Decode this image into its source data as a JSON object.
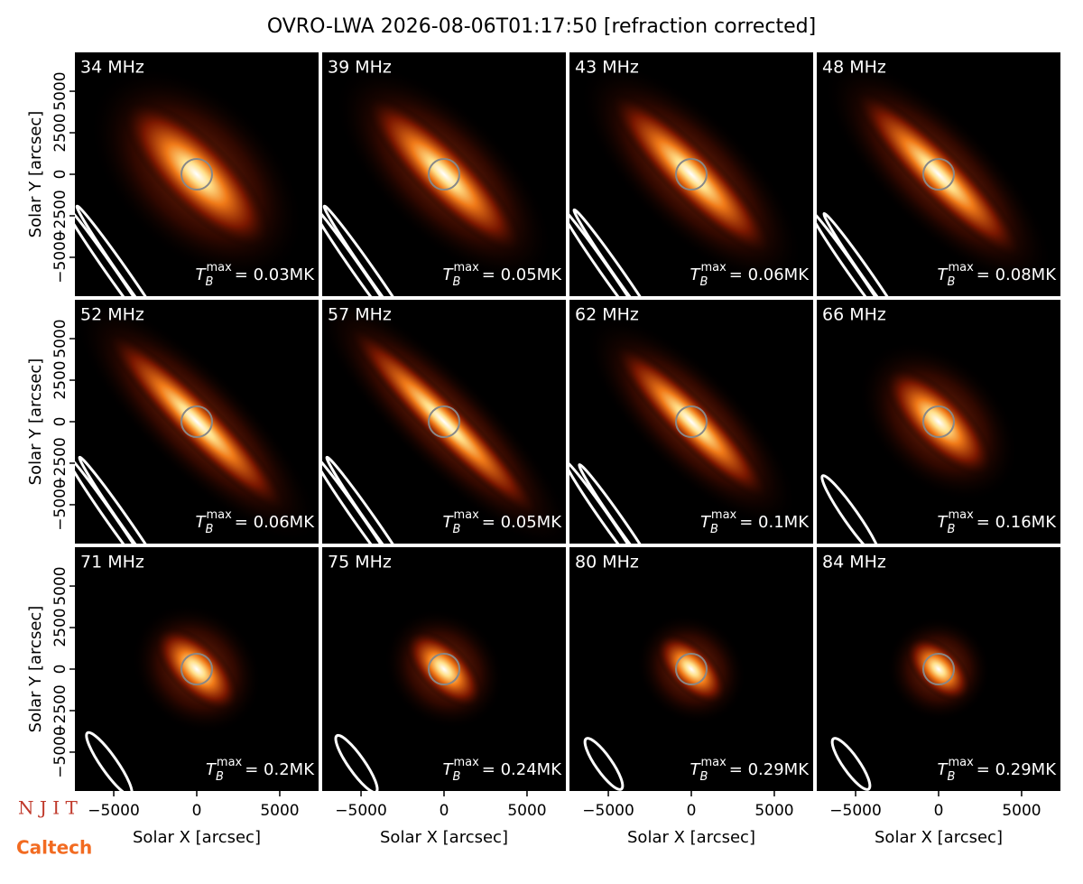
{
  "title": "OVRO-LWA 2026-08-06T01:17:50 [refraction corrected]",
  "logos": [
    "N J I T",
    "Caltech"
  ],
  "annotation_symbol": {
    "base": "T",
    "sub": "B",
    "sup": "max"
  },
  "chart_data": [
    {
      "type": "image",
      "title": "34 MHz",
      "annotation": "= 0.03MK",
      "xlim": [
        -7340,
        7340
      ],
      "ylim": [
        -7340,
        7340
      ],
      "ylabel": "Solar Y [arcsec]",
      "yticks": [
        {
          "value": -5000,
          "label": "−5000"
        },
        {
          "value": -2500,
          "label": "−2500"
        },
        0,
        2500,
        5000
      ]
    },
    {
      "type": "image",
      "title": "39 MHz",
      "annotation": "= 0.05MK",
      "xlim": [
        -7340,
        7340
      ],
      "ylim": [
        -7340,
        7340
      ]
    },
    {
      "type": "image",
      "title": "43 MHz",
      "annotation": "= 0.06MK",
      "xlim": [
        -7340,
        7340
      ],
      "ylim": [
        -7340,
        7340
      ]
    },
    {
      "type": "image",
      "title": "48 MHz",
      "annotation": "= 0.08MK",
      "xlim": [
        -7340,
        7340
      ],
      "ylim": [
        -7340,
        7340
      ]
    },
    {
      "type": "image",
      "title": "52 MHz",
      "annotation": "= 0.06MK",
      "xlim": [
        -7340,
        7340
      ],
      "ylim": [
        -7340,
        7340
      ],
      "ylabel": "Solar Y [arcsec]",
      "yticks": [
        {
          "value": -5000,
          "label": "−5000"
        },
        {
          "value": -2500,
          "label": "−2500"
        },
        0,
        2500,
        5000
      ]
    },
    {
      "type": "image",
      "title": "57 MHz",
      "annotation": "= 0.05MK",
      "xlim": [
        -7340,
        7340
      ],
      "ylim": [
        -7340,
        7340
      ]
    },
    {
      "type": "image",
      "title": "62 MHz",
      "annotation": "= 0.1MK",
      "xlim": [
        -7340,
        7340
      ],
      "ylim": [
        -7340,
        7340
      ]
    },
    {
      "type": "image",
      "title": "66 MHz",
      "annotation": "= 0.16MK",
      "xlim": [
        -7340,
        7340
      ],
      "ylim": [
        -7340,
        7340
      ]
    },
    {
      "type": "image",
      "title": "71 MHz",
      "annotation": "= 0.2MK",
      "xlim": [
        -7340,
        7340
      ],
      "ylim": [
        -7340,
        7340
      ],
      "ylabel": "Solar Y [arcsec]",
      "yticks": [
        {
          "value": -5000,
          "label": "−5000"
        },
        {
          "value": -2500,
          "label": "−2500"
        },
        0,
        2500,
        5000
      ],
      "xlabel": "Solar X [arcsec]",
      "xticks": [
        {
          "value": -5000,
          "label": "−5000"
        },
        0,
        5000
      ]
    },
    {
      "type": "image",
      "title": "75 MHz",
      "annotation": "= 0.24MK",
      "xlim": [
        -7340,
        7340
      ],
      "ylim": [
        -7340,
        7340
      ],
      "xlabel": "Solar X [arcsec]",
      "xticks": [
        {
          "value": -5000,
          "label": "−5000"
        },
        0,
        5000
      ]
    },
    {
      "type": "image",
      "title": "80 MHz",
      "annotation": "= 0.29MK",
      "xlim": [
        -7340,
        7340
      ],
      "ylim": [
        -7340,
        7340
      ],
      "xlabel": "Solar X [arcsec]",
      "xticks": [
        {
          "value": -5000,
          "label": "−5000"
        },
        0,
        5000
      ]
    },
    {
      "type": "image",
      "title": "84 MHz",
      "annotation": "= 0.29MK",
      "xlim": [
        -7340,
        7340
      ],
      "ylim": [
        -7340,
        7340
      ],
      "xlabel": "Solar X [arcsec]",
      "xticks": [
        {
          "value": -5000,
          "label": "−5000"
        },
        0,
        5000
      ]
    }
  ]
}
